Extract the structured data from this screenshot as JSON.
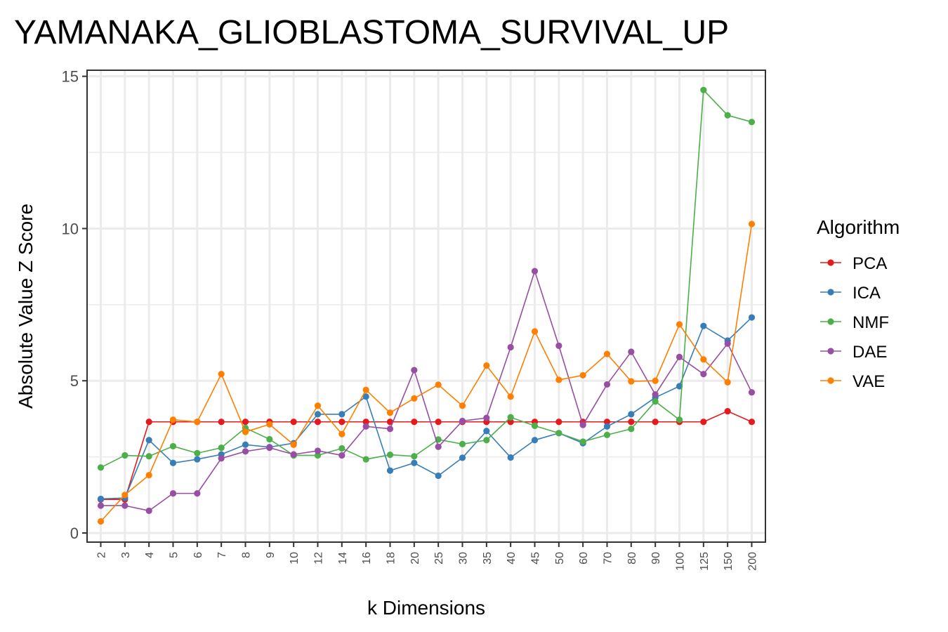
{
  "chart_data": {
    "type": "line",
    "title": "YAMANAKA_GLIOBLASTOMA_SURVIVAL_UP",
    "xlabel": "k Dimensions",
    "ylabel": "Absolute Value Z Score",
    "categories": [
      "2",
      "3",
      "4",
      "5",
      "6",
      "7",
      "8",
      "9",
      "10",
      "12",
      "14",
      "16",
      "18",
      "20",
      "25",
      "30",
      "35",
      "40",
      "45",
      "50",
      "60",
      "70",
      "80",
      "90",
      "100",
      "125",
      "150",
      "200"
    ],
    "ylim": [
      -0.3,
      15.2
    ],
    "yticks": [
      0,
      5,
      10,
      15
    ],
    "grid": true,
    "legend": {
      "title": "Algorithm",
      "placement": "right"
    },
    "series": [
      {
        "name": "PCA",
        "color": "#E41A1C",
        "values": [
          1.1,
          1.1,
          3.65,
          3.65,
          3.65,
          3.65,
          3.65,
          3.65,
          3.65,
          3.65,
          3.65,
          3.65,
          3.65,
          3.65,
          3.65,
          3.65,
          3.65,
          3.65,
          3.65,
          3.65,
          3.65,
          3.65,
          3.65,
          3.65,
          3.65,
          3.65,
          4.0,
          3.65
        ]
      },
      {
        "name": "ICA",
        "color": "#377EB8",
        "values": [
          1.12,
          1.15,
          3.05,
          2.3,
          2.42,
          2.58,
          2.9,
          2.82,
          2.95,
          3.9,
          3.9,
          4.48,
          2.05,
          2.3,
          1.88,
          2.47,
          3.35,
          2.48,
          3.05,
          3.28,
          2.95,
          3.5,
          3.9,
          4.45,
          4.82,
          6.8,
          6.32,
          7.08
        ]
      },
      {
        "name": "NMF",
        "color": "#4DAF4A",
        "values": [
          2.15,
          2.55,
          2.52,
          2.85,
          2.62,
          2.8,
          3.45,
          3.08,
          2.55,
          2.55,
          2.78,
          2.42,
          2.57,
          2.52,
          3.07,
          2.92,
          3.05,
          3.8,
          3.52,
          3.28,
          3.0,
          3.22,
          3.42,
          4.32,
          3.72,
          14.55,
          13.72,
          13.5
        ]
      },
      {
        "name": "DAE",
        "color": "#984EA3",
        "values": [
          0.9,
          0.9,
          0.73,
          1.3,
          1.3,
          2.45,
          2.68,
          2.8,
          2.58,
          2.7,
          2.55,
          3.5,
          3.42,
          5.35,
          2.83,
          3.68,
          3.78,
          6.1,
          8.6,
          6.15,
          3.55,
          4.88,
          5.95,
          4.55,
          5.78,
          5.22,
          6.22,
          4.62
        ]
      },
      {
        "name": "VAE",
        "color": "#FF7F00",
        "values": [
          0.38,
          1.25,
          1.9,
          3.72,
          3.65,
          5.22,
          3.32,
          3.57,
          2.9,
          4.18,
          3.25,
          4.7,
          3.95,
          4.42,
          4.87,
          4.18,
          5.5,
          4.48,
          6.62,
          5.03,
          5.18,
          5.88,
          4.98,
          5.0,
          6.85,
          5.7,
          4.95,
          10.15
        ]
      }
    ]
  }
}
